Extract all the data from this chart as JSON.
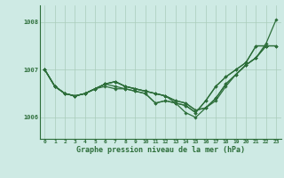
{
  "xlabel": "Graphe pression niveau de la mer (hPa)",
  "background_color": "#ceeae4",
  "grid_color": "#aaccbb",
  "line_color": "#2d6e3a",
  "xlim": [
    -0.5,
    23.5
  ],
  "ylim": [
    1005.55,
    1008.35
  ],
  "yticks": [
    1006,
    1007,
    1008
  ],
  "xticks": [
    0,
    1,
    2,
    3,
    4,
    5,
    6,
    7,
    8,
    9,
    10,
    11,
    12,
    13,
    14,
    15,
    16,
    17,
    18,
    19,
    20,
    21,
    22,
    23
  ],
  "series": [
    {
      "x": [
        0,
        1,
        2,
        3,
        4,
        5,
        6,
        7,
        8,
        9,
        10,
        11,
        12,
        13,
        14,
        15,
        16,
        17,
        18,
        19,
        20,
        21,
        22,
        23
      ],
      "y": [
        1007.0,
        1006.65,
        1006.5,
        1006.45,
        1006.5,
        1006.6,
        1006.7,
        1006.75,
        1006.65,
        1006.6,
        1006.55,
        1006.5,
        1006.45,
        1006.3,
        1006.1,
        1006.0,
        1006.2,
        1006.35,
        1006.65,
        1006.9,
        1007.1,
        1007.25,
        1007.55,
        1008.05
      ]
    },
    {
      "x": [
        0,
        1,
        2,
        3,
        4,
        5,
        6,
        7,
        8,
        9,
        10,
        11,
        12,
        13,
        14,
        15,
        16,
        17,
        18,
        19,
        20,
        21,
        22,
        23
      ],
      "y": [
        1007.0,
        1006.65,
        1006.5,
        1006.45,
        1006.5,
        1006.6,
        1006.7,
        1006.75,
        1006.65,
        1006.6,
        1006.55,
        1006.5,
        1006.45,
        1006.35,
        1006.3,
        1006.15,
        1006.2,
        1006.4,
        1006.7,
        1006.9,
        1007.1,
        1007.25,
        1007.5,
        1007.5
      ]
    },
    {
      "x": [
        0,
        1,
        2,
        3,
        4,
        5,
        6,
        7,
        8,
        9,
        10,
        11,
        12,
        13,
        14,
        15,
        16,
        17,
        18,
        19,
        20,
        21,
        22,
        23
      ],
      "y": [
        1007.0,
        1006.65,
        1006.5,
        1006.45,
        1006.5,
        1006.6,
        1006.7,
        1006.75,
        1006.65,
        1006.6,
        1006.55,
        1006.5,
        1006.45,
        1006.35,
        1006.3,
        1006.15,
        1006.2,
        1006.4,
        1006.7,
        1006.9,
        1007.1,
        1007.25,
        1007.5,
        1007.5
      ]
    },
    {
      "x": [
        0,
        1,
        2,
        3,
        4,
        5,
        6,
        7,
        8,
        9,
        10,
        11,
        12,
        13,
        14,
        15,
        16,
        17,
        18,
        19,
        20,
        21,
        22
      ],
      "y": [
        1007.0,
        1006.65,
        1006.5,
        1006.45,
        1006.5,
        1006.6,
        1006.7,
        1006.65,
        1006.6,
        1006.55,
        1006.5,
        1006.3,
        1006.35,
        1006.3,
        1006.25,
        1006.1,
        1006.35,
        1006.65,
        1006.85,
        1007.0,
        1007.15,
        1007.5,
        1007.5
      ]
    },
    {
      "x": [
        0,
        1,
        2,
        3,
        4,
        5,
        6,
        7,
        8,
        9,
        10,
        11,
        12,
        13,
        14,
        15,
        16,
        17,
        18,
        19,
        20,
        21,
        22
      ],
      "y": [
        1007.0,
        1006.65,
        1006.5,
        1006.45,
        1006.5,
        1006.6,
        1006.65,
        1006.6,
        1006.6,
        1006.55,
        1006.5,
        1006.3,
        1006.35,
        1006.3,
        1006.25,
        1006.1,
        1006.35,
        1006.65,
        1006.85,
        1007.0,
        1007.15,
        1007.5,
        1007.5
      ]
    }
  ]
}
